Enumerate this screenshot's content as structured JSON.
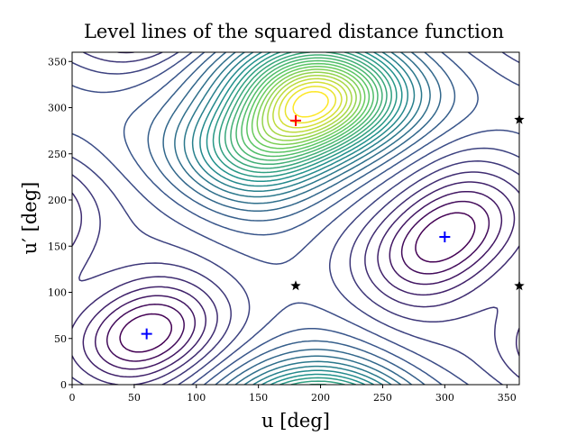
{
  "chart_data": {
    "type": "contour",
    "title": "Level lines of the squared distance function",
    "xlabel": "u [deg]",
    "ylabel": "u′ [deg]",
    "xlim": [
      0,
      360
    ],
    "ylim": [
      0,
      360
    ],
    "xticks": [
      0,
      50,
      100,
      150,
      200,
      250,
      300,
      350
    ],
    "yticks": [
      0,
      50,
      100,
      150,
      200,
      250,
      300,
      350
    ],
    "markers": [
      {
        "marker": "plus",
        "color": "#ff0000",
        "x": [
          180
        ],
        "y": [
          286
        ]
      },
      {
        "marker": "plus",
        "color": "#0000ff",
        "x": [
          60,
          300
        ],
        "y": [
          55,
          160
        ]
      },
      {
        "marker": "star",
        "color": "#000000",
        "x": [
          180,
          360,
          360
        ],
        "y": [
          107,
          107,
          287
        ]
      }
    ]
  }
}
